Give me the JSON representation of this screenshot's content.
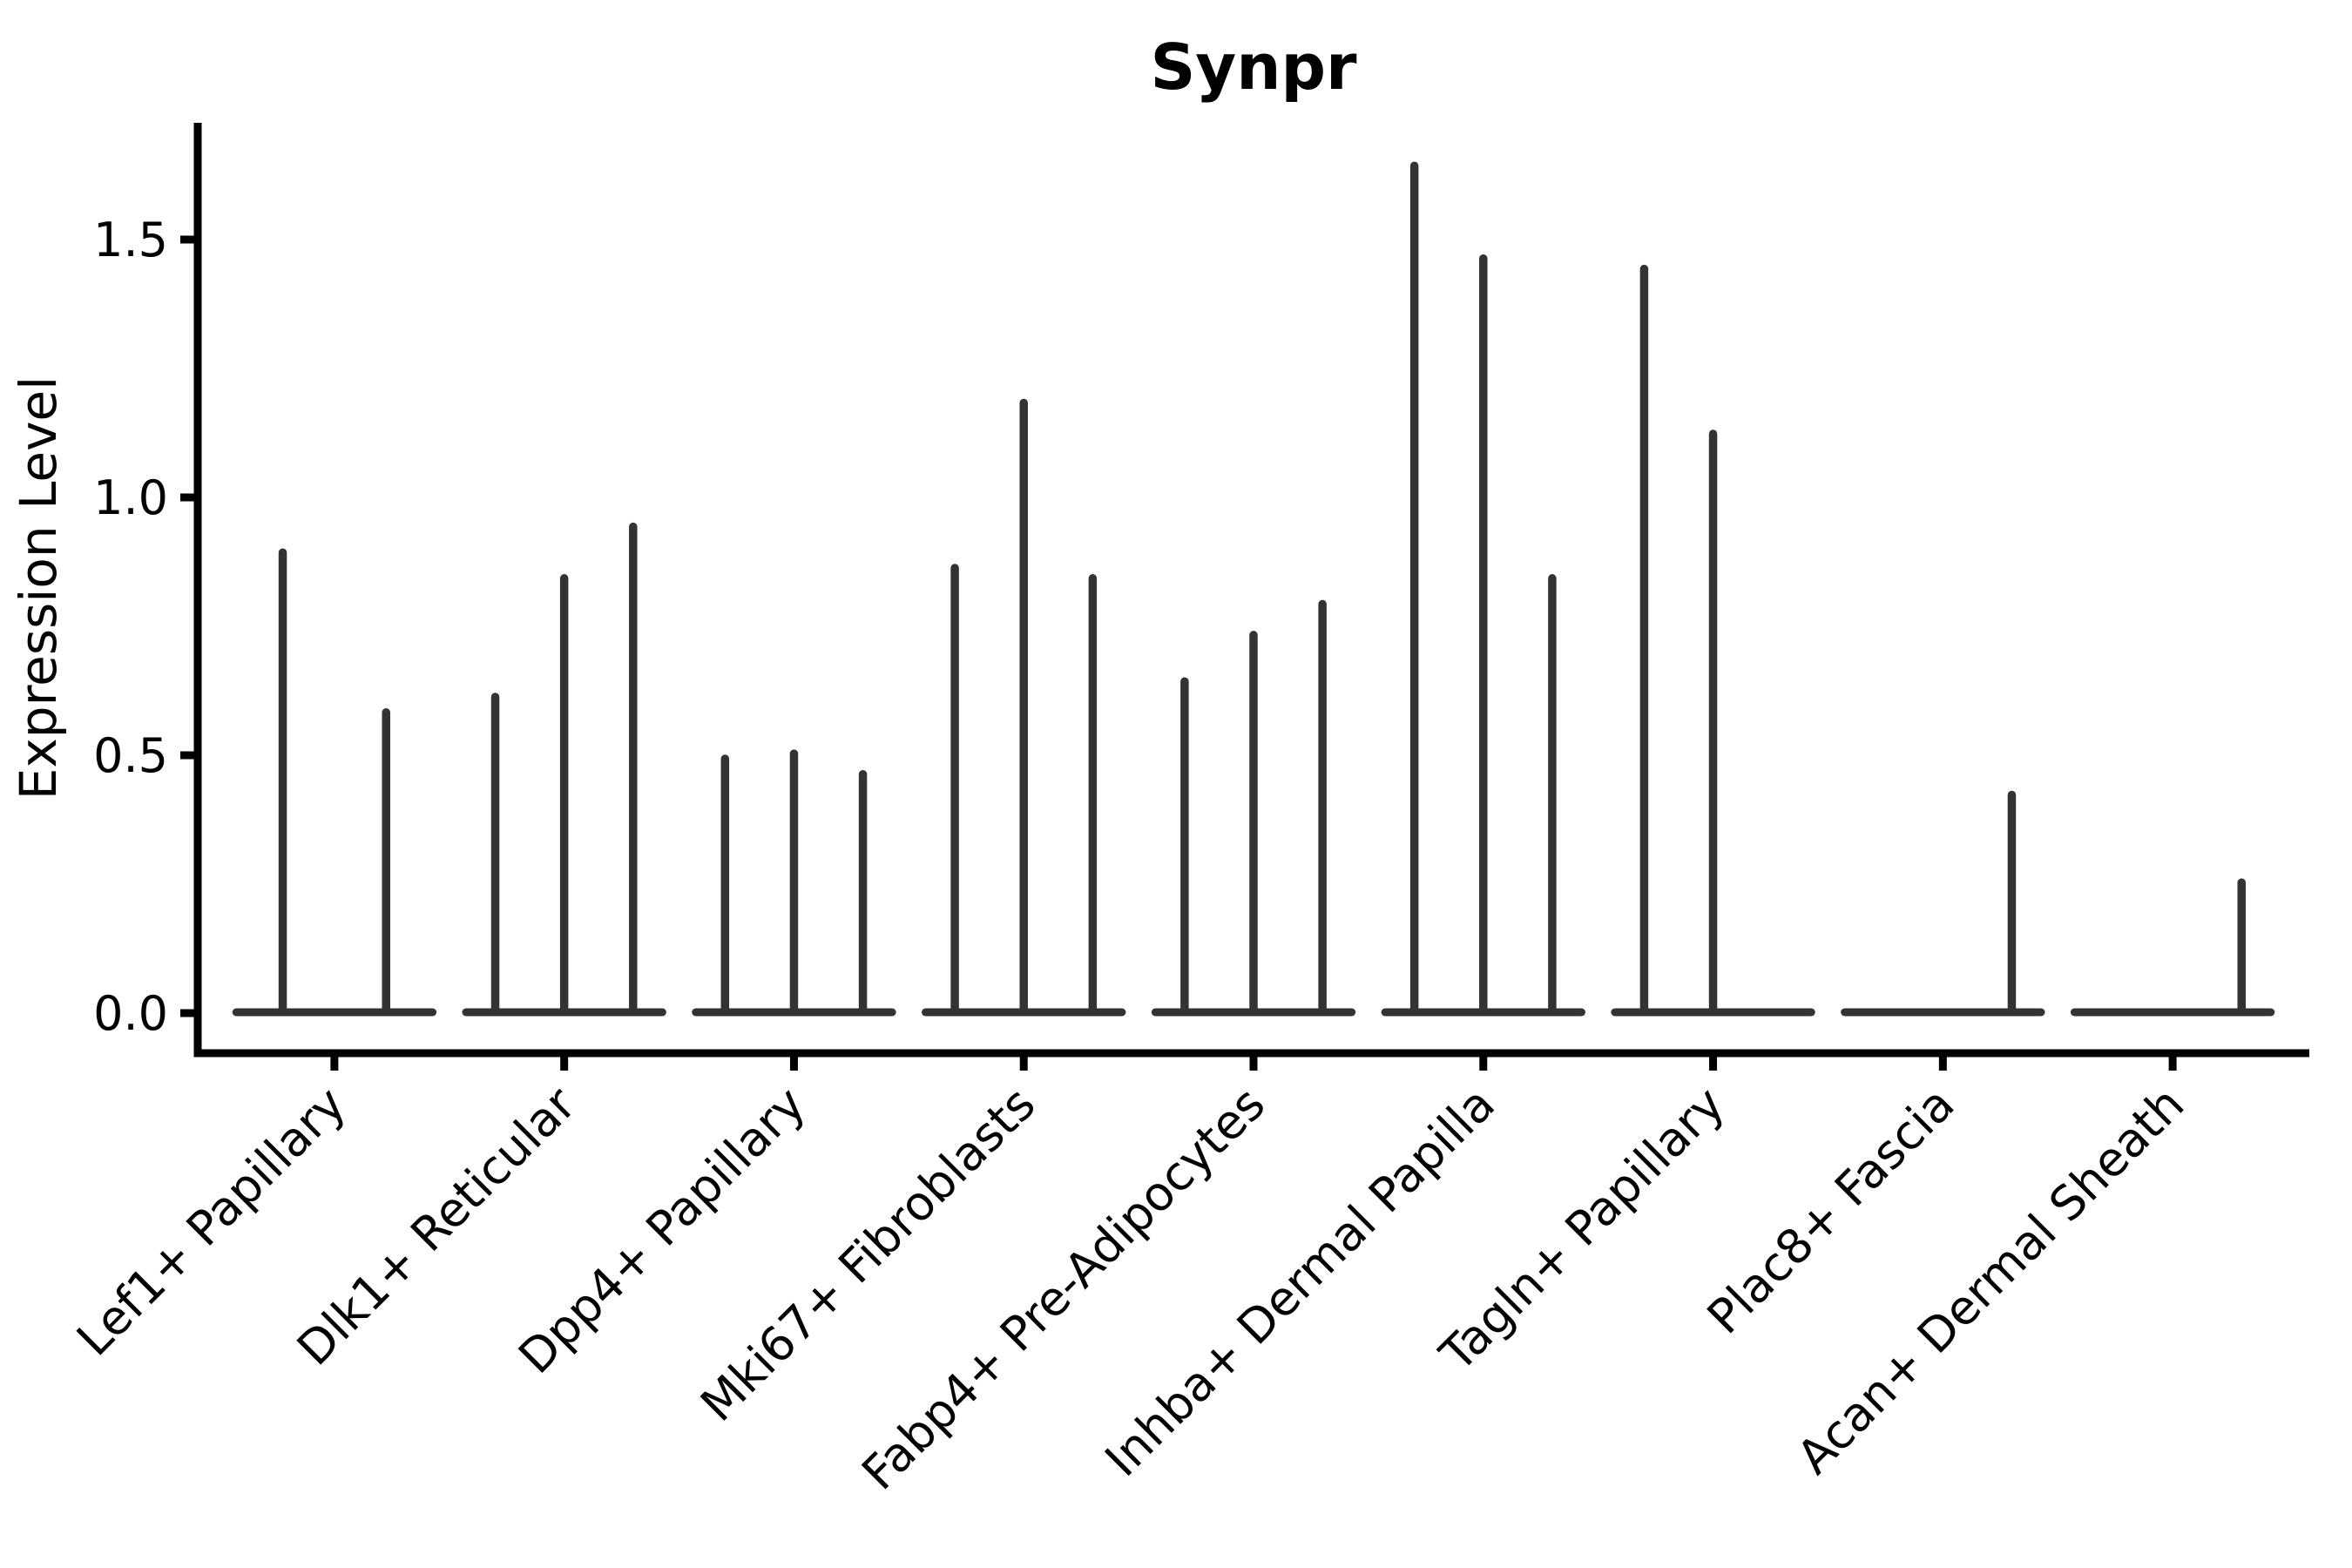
{
  "figure": {
    "title": "Synpr",
    "ylabel": "Expression Level"
  },
  "chart_data": {
    "type": "violin",
    "title": "Synpr",
    "xlabel": "",
    "ylabel": "Expression Level",
    "ylim": [
      -0.08,
      1.73
    ],
    "yticks": [
      0.0,
      0.5,
      1.0,
      1.5
    ],
    "ytick_labels": [
      "0.0",
      "0.5",
      "1.0",
      "1.5"
    ],
    "grid": false,
    "legend": "none",
    "violin_color": "#333333",
    "axis_color": "#000000",
    "categories": [
      {
        "label": "Lef1+ Papillary",
        "violin_maxima": [
          0.9,
          0.59
        ]
      },
      {
        "label": "Dlk1+ Reticular",
        "violin_maxima": [
          0.62,
          0.85,
          0.95
        ]
      },
      {
        "label": "Dpp4+ Papillary",
        "violin_maxima": [
          0.5,
          0.51,
          0.47
        ]
      },
      {
        "label": "Mki67+ Fibroblasts",
        "violin_maxima": [
          0.87,
          1.19,
          0.85
        ]
      },
      {
        "label": "Fabp4+ Pre-Adipocytes",
        "violin_maxima": [
          0.65,
          0.74,
          0.8
        ]
      },
      {
        "label": "Inhba+ Dermal Papilla",
        "violin_maxima": [
          1.65,
          1.47,
          0.85
        ]
      },
      {
        "label": "Tagln+ Papillary",
        "violin_maxima": [
          1.45,
          1.13,
          0.0
        ]
      },
      {
        "label": "Plac8+ Fascia",
        "violin_maxima": [
          0.0,
          0.0,
          0.43
        ]
      },
      {
        "label": "Acan+ Dermal Sheath",
        "violin_maxima": [
          0.0,
          0.0,
          0.26
        ]
      }
    ],
    "note": "Collapsed violins: each violin is a flat base at 0 with a thin spike up to its maximum expression value; 0 = flat violin with no spike"
  }
}
